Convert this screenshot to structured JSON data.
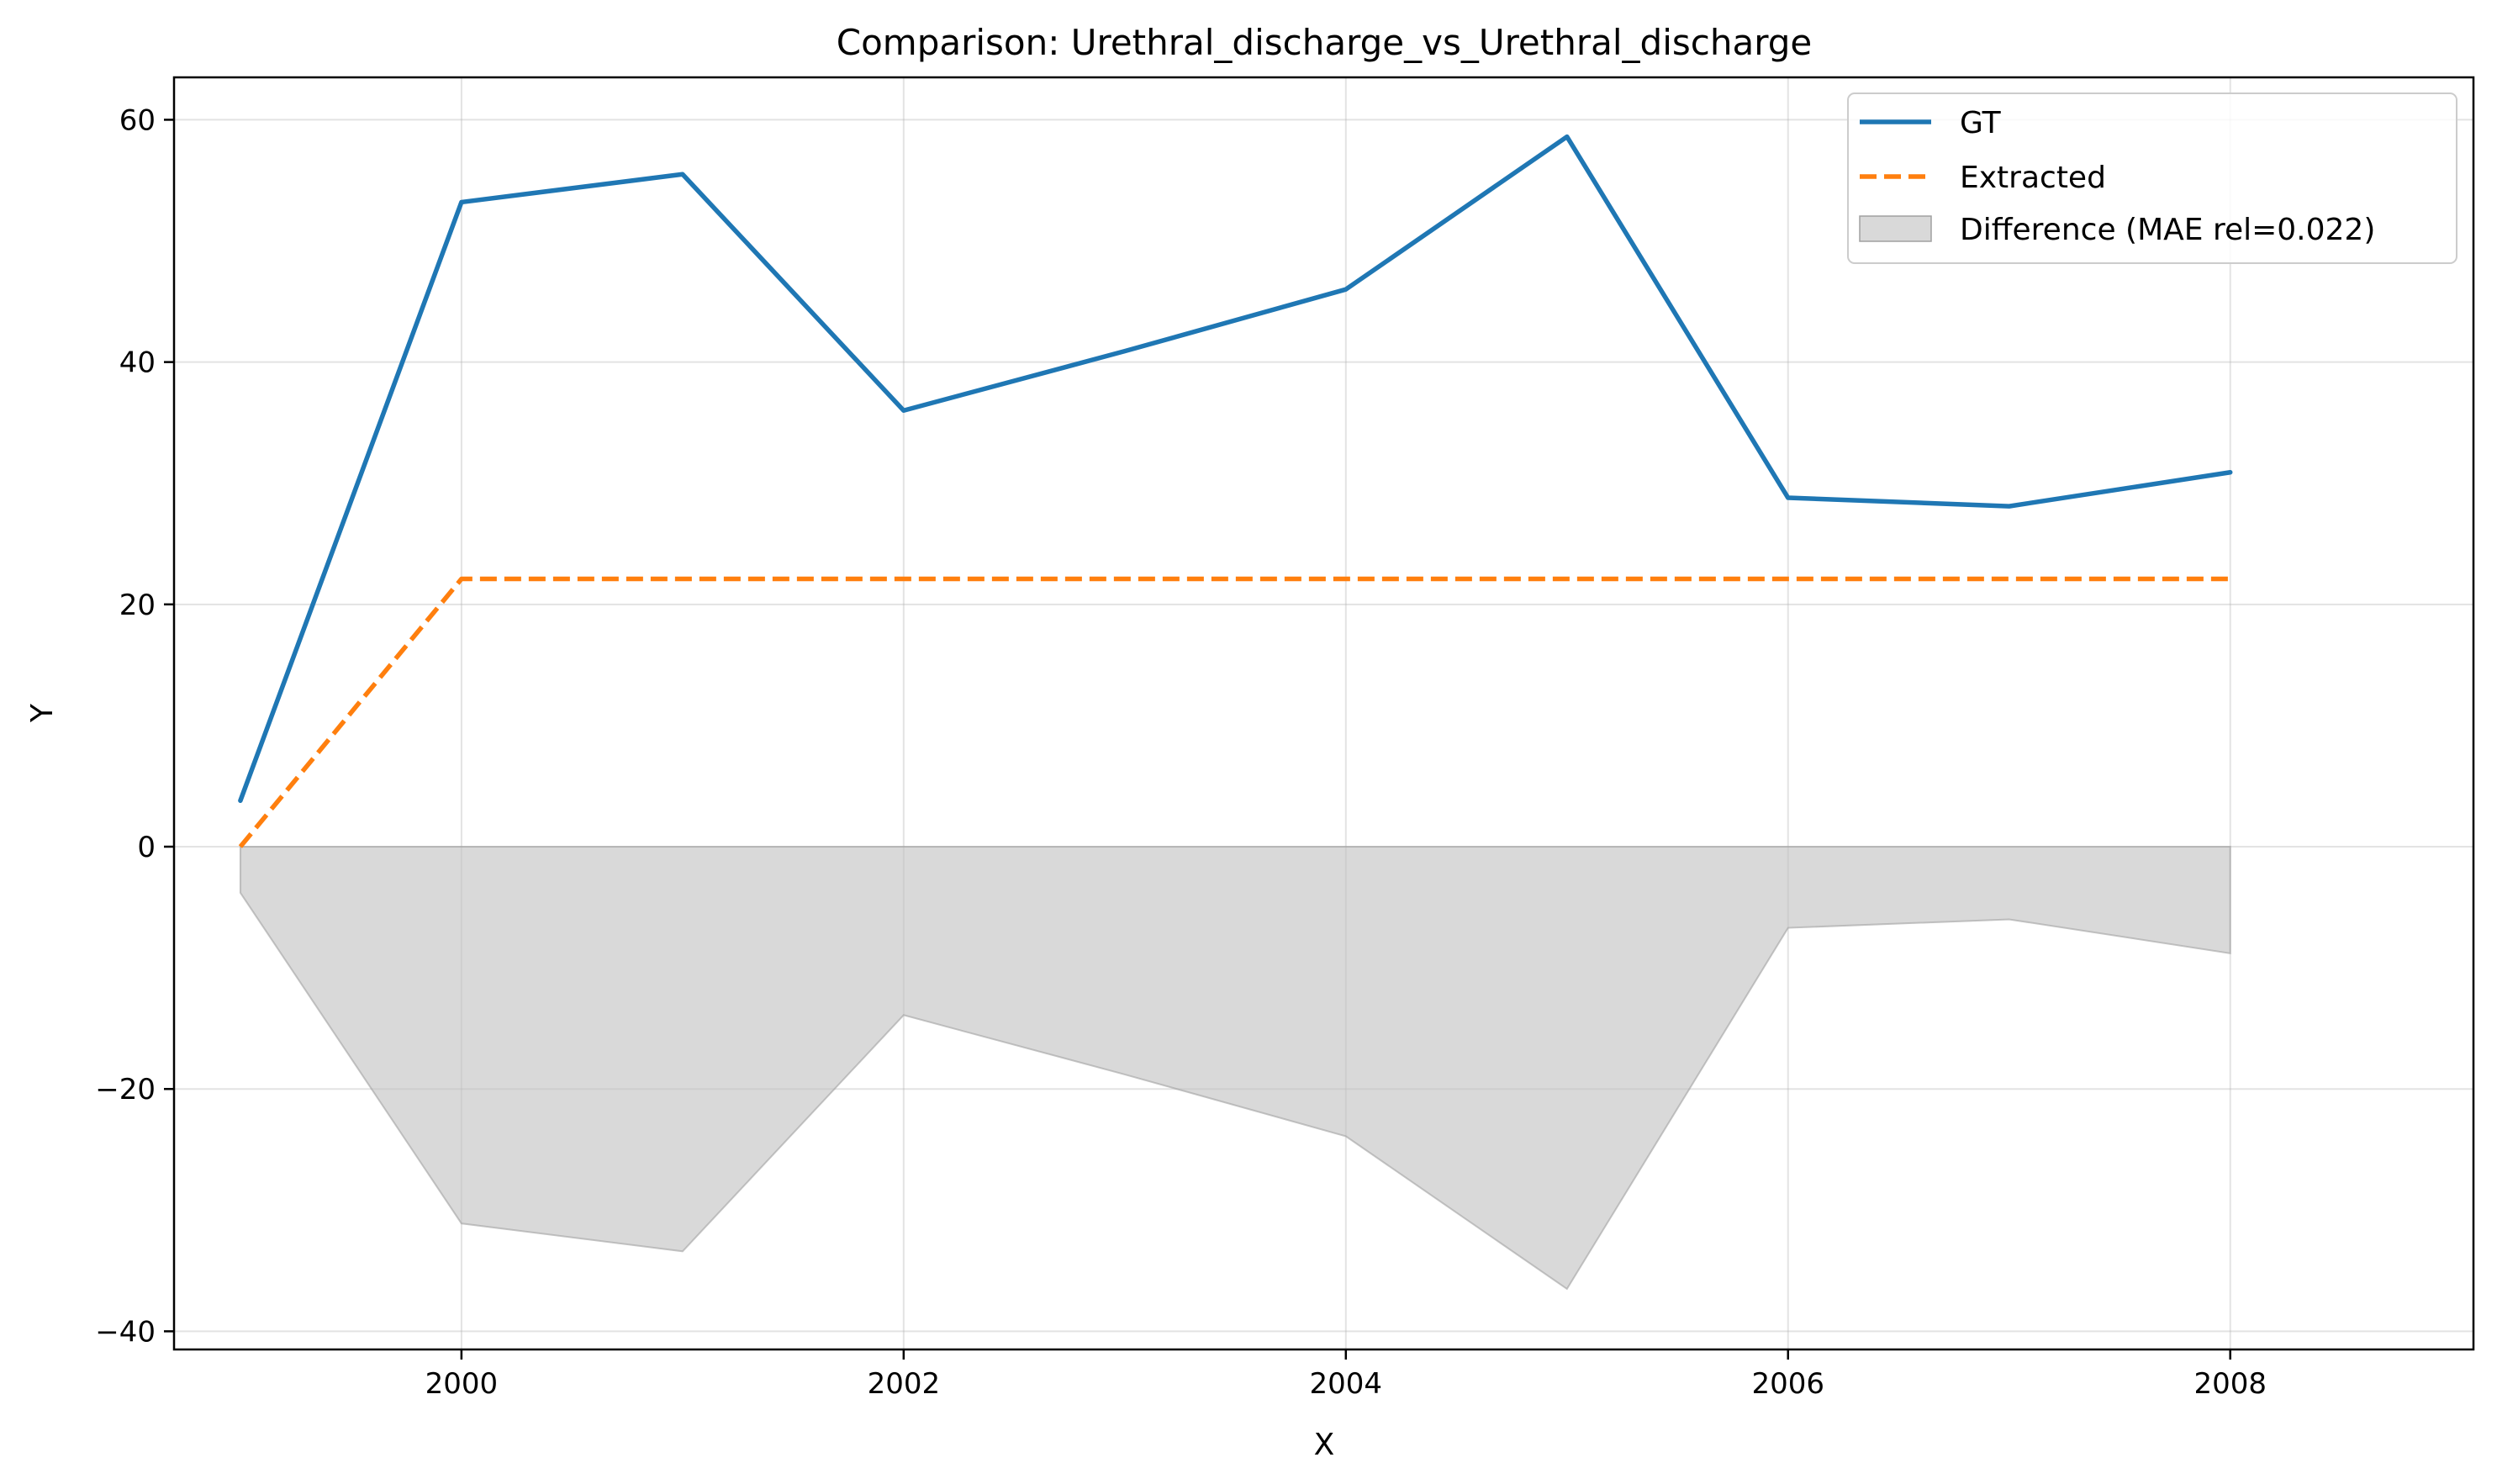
{
  "chart_data": {
    "type": "line",
    "title": "Comparison: Urethral_discharge_vs_Urethral_discharge",
    "xlabel": "X",
    "ylabel": "Y",
    "xlim": [
      1998.7,
      2009.1
    ],
    "ylim": [
      -41.5,
      63.5
    ],
    "x_ticks": [
      2000,
      2002,
      2004,
      2006,
      2008
    ],
    "x_tick_labels": [
      "2000",
      "2002",
      "2004",
      "2006",
      "2008"
    ],
    "y_ticks": [
      -40,
      -20,
      0,
      20,
      40,
      60
    ],
    "y_tick_labels": [
      "−40",
      "−20",
      "0",
      "20",
      "40",
      "60"
    ],
    "grid": true,
    "legend_position": "top-right",
    "x": [
      1999,
      2000,
      2001,
      2002,
      2003,
      2004,
      2005,
      2006,
      2007,
      2008
    ],
    "series": [
      {
        "name": "GT",
        "style": "solid",
        "color": "#1f77b4",
        "values": [
          3.8,
          53.2,
          55.5,
          36.0,
          40.9,
          46.0,
          58.6,
          28.8,
          28.1,
          30.9
        ]
      },
      {
        "name": "Extracted",
        "style": "dashed",
        "color": "#ff7f0e",
        "values": [
          0.0,
          22.1,
          22.1,
          22.1,
          22.1,
          22.1,
          22.1,
          22.1,
          22.1,
          22.1
        ]
      }
    ],
    "difference_area": {
      "name": "Difference (MAE rel=0.022)",
      "color": "#bfbfbf",
      "values": [
        -3.8,
        -31.1,
        -33.4,
        -13.9,
        -18.8,
        -23.9,
        -36.5,
        -6.7,
        -6.0,
        -8.8
      ]
    }
  }
}
